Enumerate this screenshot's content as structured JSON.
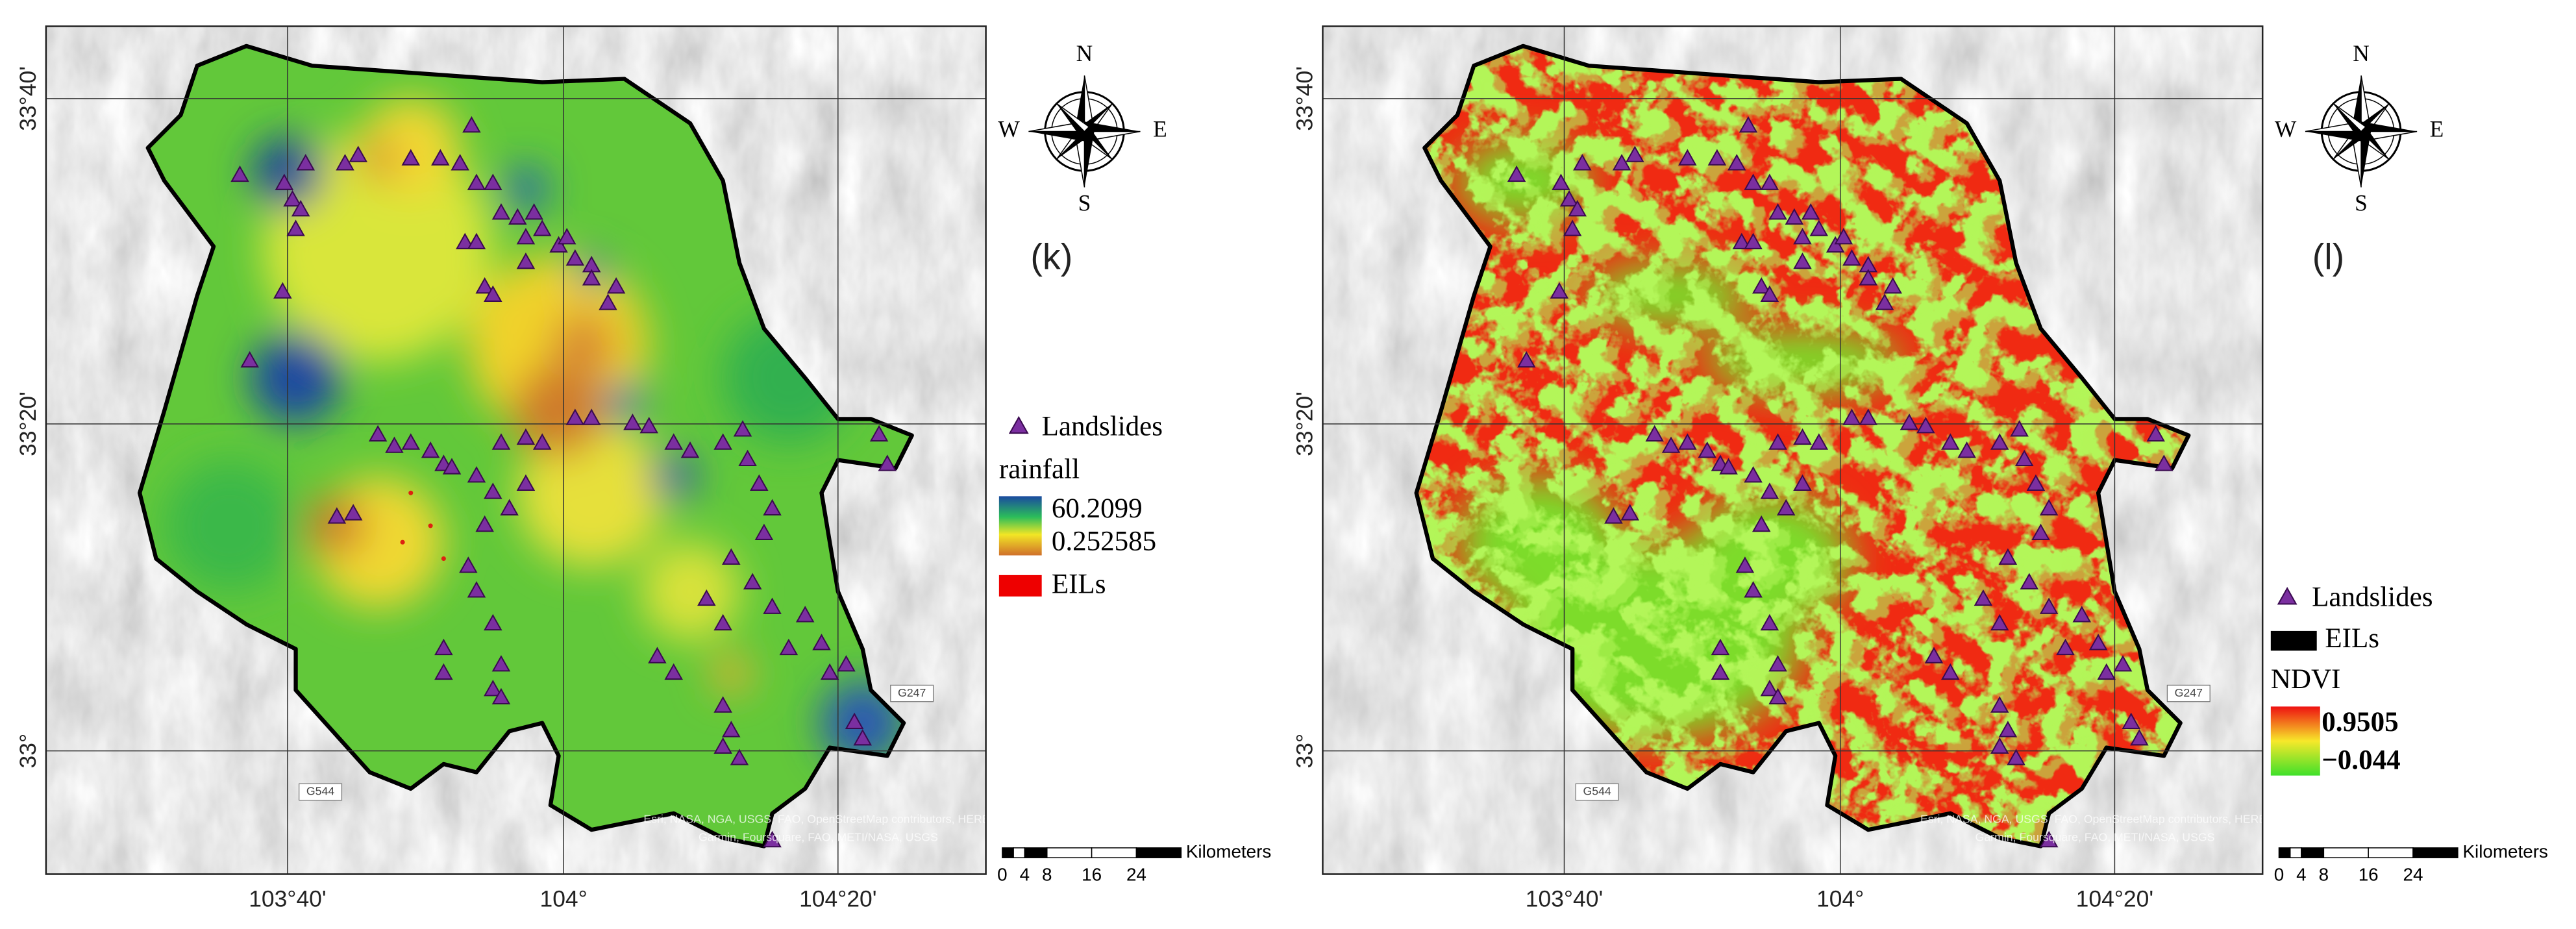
{
  "panels": [
    {
      "label": "(k)",
      "lat_labels": [
        "33°40'",
        "33°20'",
        "33°"
      ],
      "lon_labels": [
        "103°40'",
        "104°",
        "104°20'"
      ],
      "road_labels": [
        "G544",
        "G247"
      ],
      "attribution": [
        "Esri, NASA, NGA, USGS, FAO, OpenStreetMap contributors, HERE,",
        "Garmin, Foursquare, FAO, METI/NASA, USGS"
      ],
      "compass": {
        "n": "N",
        "s": "S",
        "e": "E",
        "w": "W"
      },
      "legend": {
        "points": "Landslides",
        "layer": "rainfall",
        "high": "60.2099",
        "low": "0.252585",
        "zones": "EILs"
      },
      "scale_bar": {
        "unit": "Kilometers",
        "ticks": [
          0,
          4,
          8,
          16,
          24
        ]
      }
    },
    {
      "label": "(l)",
      "lat_labels": [
        "33°40'",
        "33°20'",
        "33°"
      ],
      "lon_labels": [
        "103°40'",
        "104°",
        "104°20'"
      ],
      "road_labels": [
        "G544",
        "G247"
      ],
      "attribution": [
        "Esri, NASA, NGA, USGS, FAO, OpenStreetMap contributors, HERE,",
        "Garmin, Foursquare, FAO, METI/NASA, USGS"
      ],
      "compass": {
        "n": "N",
        "s": "S",
        "e": "E",
        "w": "W"
      },
      "legend": {
        "points": "Landslides",
        "zones": "EILs",
        "layer": "NDVI",
        "high": "0.9505",
        "low": "−0.044"
      },
      "scale_bar": {
        "unit": "Kilometers",
        "ticks": [
          0,
          4,
          8,
          16,
          24
        ]
      }
    }
  ]
}
